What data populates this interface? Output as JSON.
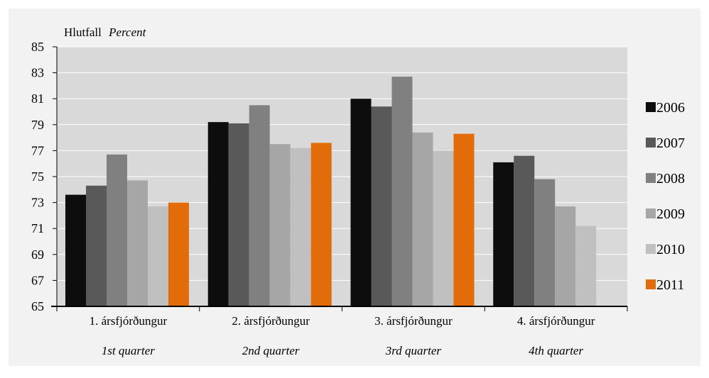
{
  "chart_data": {
    "type": "bar",
    "ylabel_main": "Hlutfall",
    "ylabel_sub": "Percent",
    "ylim": [
      65,
      85
    ],
    "yticks": [
      65,
      67,
      69,
      71,
      73,
      75,
      77,
      79,
      81,
      83,
      85
    ],
    "grid": true,
    "legend_position": "right",
    "categories": [
      {
        "main": "1. ársfjórðungur",
        "sub": "1st quarter"
      },
      {
        "main": "2. ársfjórðungur",
        "sub": "2nd quarter"
      },
      {
        "main": "3. ársfjórðungur",
        "sub": "3rd quarter"
      },
      {
        "main": "4. ársfjórðungur",
        "sub": "4th quarter"
      }
    ],
    "series": [
      {
        "name": "2006",
        "color": "#0d0d0d",
        "values": [
          73.6,
          79.2,
          81.0,
          76.1
        ]
      },
      {
        "name": "2007",
        "color": "#595959",
        "values": [
          74.3,
          79.1,
          80.4,
          76.6
        ]
      },
      {
        "name": "2008",
        "color": "#808080",
        "values": [
          76.7,
          80.5,
          82.7,
          74.8
        ]
      },
      {
        "name": "2009",
        "color": "#a6a6a6",
        "values": [
          74.7,
          77.5,
          78.4,
          72.7
        ]
      },
      {
        "name": "2010",
        "color": "#c0c0c0",
        "values": [
          72.7,
          77.2,
          77.0,
          71.2
        ]
      },
      {
        "name": "2011",
        "color": "#e36c0a",
        "values": [
          73.0,
          77.6,
          78.3,
          null
        ]
      }
    ]
  },
  "colors": {
    "outer_background": "#f2f2f2",
    "plot_background": "#d9d9d9",
    "gridline": "#ffffff",
    "axis": "#000000"
  }
}
